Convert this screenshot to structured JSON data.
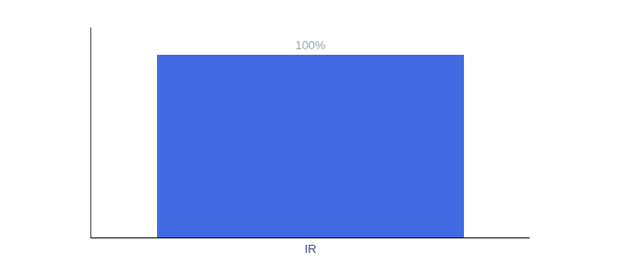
{
  "chart_data": {
    "type": "bar",
    "categories": [
      "IR"
    ],
    "values": [
      100
    ],
    "value_labels": [
      "100%"
    ],
    "data_labels": true,
    "color": "#4169E1",
    "ylim": [
      0,
      115
    ],
    "grid": false,
    "tick_labels": "x"
  }
}
